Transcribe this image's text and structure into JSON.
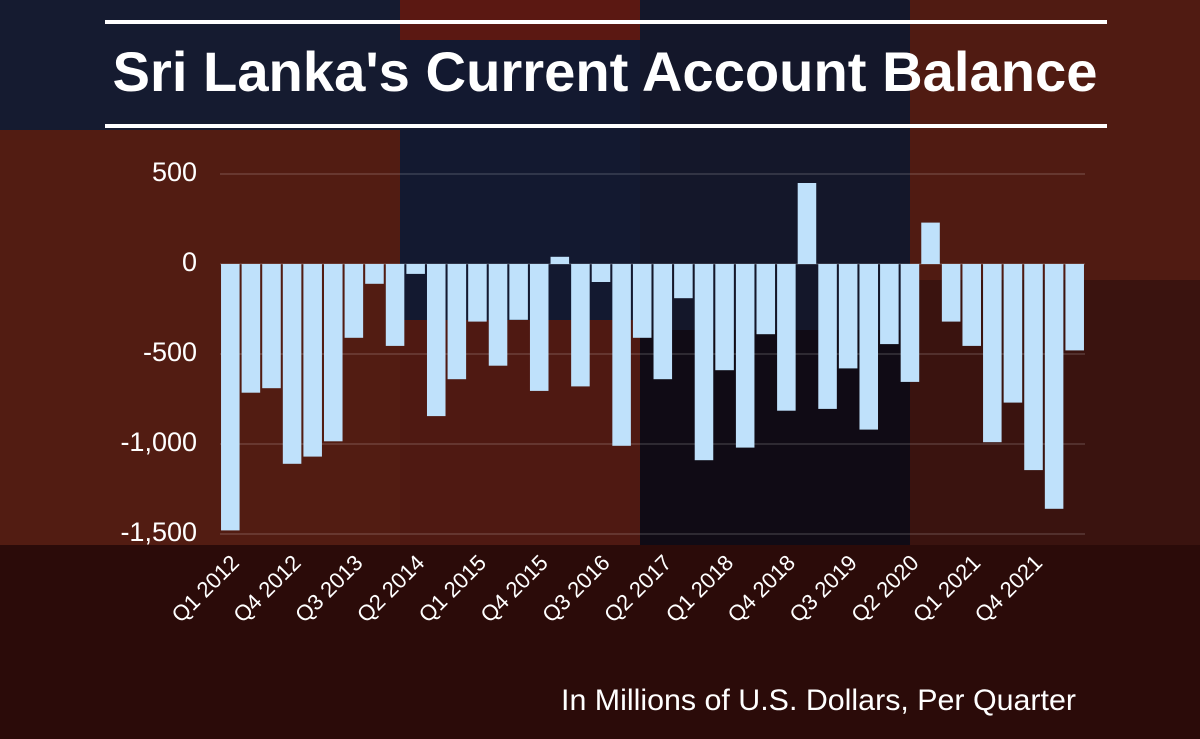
{
  "chart_data": {
    "type": "bar",
    "title": "Sri Lanka's Current Account Balance",
    "caption": "In Millions of U.S. Dollars, Per Quarter",
    "categories": [
      "Q1 2012",
      null,
      null,
      "Q4 2012",
      null,
      null,
      "Q3 2013",
      null,
      null,
      "Q2 2014",
      null,
      null,
      "Q1 2015",
      null,
      null,
      "Q4 2015",
      null,
      null,
      "Q3 2016",
      null,
      null,
      "Q2 2017",
      null,
      null,
      "Q1 2018",
      null,
      null,
      "Q4 2018",
      null,
      null,
      "Q3 2019",
      null,
      null,
      "Q2 2020",
      null,
      null,
      "Q1 2021",
      null,
      null,
      "Q4 2021",
      null,
      null
    ],
    "values": [
      -1480,
      -715,
      -690,
      -1110,
      -1070,
      -985,
      -410,
      -110,
      -455,
      -55,
      -845,
      -640,
      -320,
      -565,
      -310,
      -705,
      40,
      -680,
      -100,
      -1010,
      -410,
      -640,
      -190,
      -1090,
      -590,
      -1020,
      -390,
      -815,
      450,
      -805,
      -580,
      -920,
      -445,
      -655,
      230,
      -320,
      -455,
      -990,
      -770,
      -1145,
      -1360,
      -480
    ],
    "color": "#bfe1fb",
    "ylim": [
      -1500,
      500
    ],
    "yticks": [
      500,
      0,
      -500,
      {
        "value": -1000,
        "label": "-1,000"
      },
      {
        "value": -1500,
        "label": "-1,500"
      }
    ],
    "grid": true
  }
}
